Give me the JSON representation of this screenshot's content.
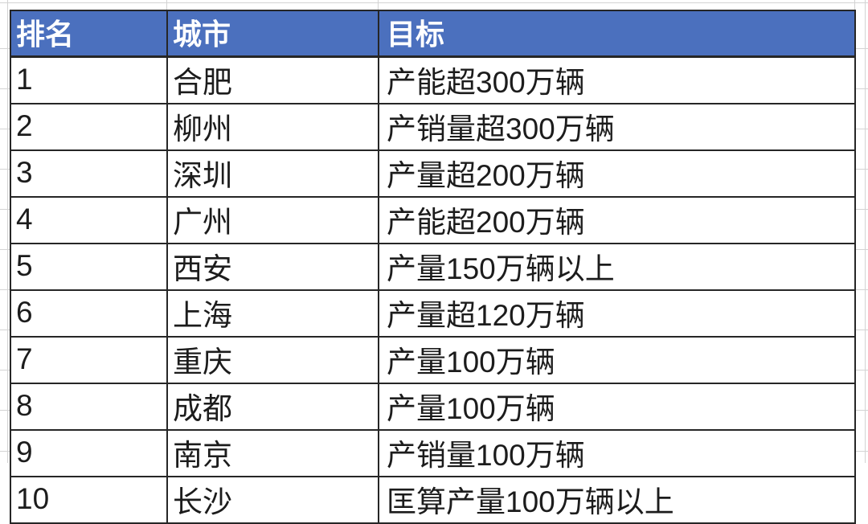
{
  "chart_data": {
    "type": "table",
    "columns": [
      "排名",
      "城市",
      "目标"
    ],
    "rows": [
      {
        "rank": "1",
        "city": "合肥",
        "target": "产能超300万辆"
      },
      {
        "rank": "2",
        "city": "柳州",
        "target": "产销量超300万辆"
      },
      {
        "rank": "3",
        "city": "深圳",
        "target": "产量超200万辆"
      },
      {
        "rank": "4",
        "city": "广州",
        "target": "产能超200万辆"
      },
      {
        "rank": "5",
        "city": "西安",
        "target": "产量150万辆以上"
      },
      {
        "rank": "6",
        "city": "上海",
        "target": "产量超120万辆"
      },
      {
        "rank": "7",
        "city": "重庆",
        "target": "产量100万辆"
      },
      {
        "rank": "8",
        "city": "成都",
        "target": "产量100万辆"
      },
      {
        "rank": "9",
        "city": "南京",
        "target": "产销量100万辆"
      },
      {
        "rank": "10",
        "city": "长沙",
        "target": "匡算产量100万辆以上"
      }
    ],
    "layout": {
      "legend": "none",
      "grid": "dark cell borders with faint spreadsheet gridlines outside table"
    }
  },
  "colors": {
    "page_bg": "#FFFFFF",
    "header_bg": "#4B70BE",
    "header_text": "#FFFFFF",
    "body_text": "#1C1C1C",
    "table_border": "#262626",
    "faint_grid": "#D3D3D3"
  }
}
